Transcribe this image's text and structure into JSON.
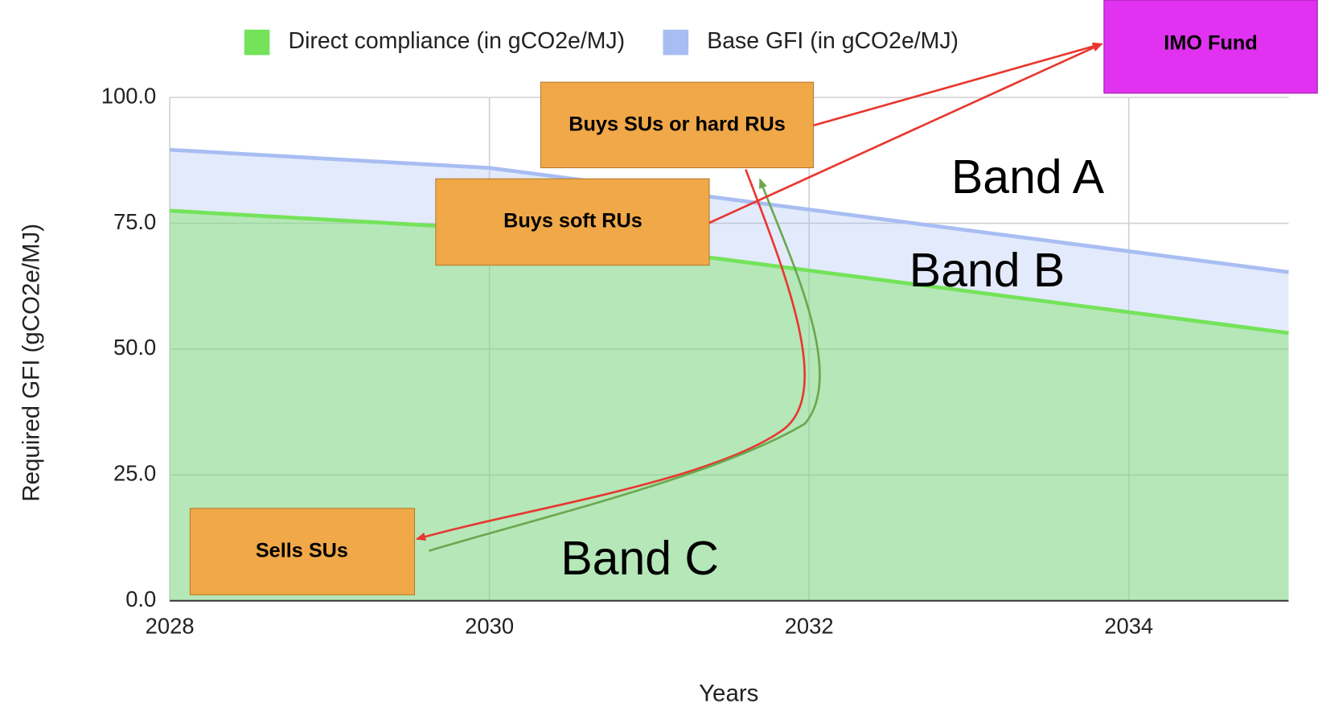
{
  "chart_data": {
    "type": "area",
    "x": [
      2028,
      2030,
      2035
    ],
    "series": [
      {
        "name": "Direct compliance (in gCO2e/MJ)",
        "color": "#74e35a",
        "values": [
          77.5,
          73.9,
          53.2
        ]
      },
      {
        "name": "Base GFI (in gCO2e/MJ)",
        "color": "#a8bdf2",
        "values": [
          89.6,
          86.0,
          65.3
        ]
      }
    ],
    "xlim": [
      2028,
      2035
    ],
    "xticks": [
      2028,
      2030,
      2032,
      2034
    ],
    "ylim": [
      0,
      100
    ],
    "yticks": [
      {
        "value": 0,
        "label": "0.0"
      },
      {
        "value": 25,
        "label": "25.0"
      },
      {
        "value": 50,
        "label": "50.0"
      },
      {
        "value": 75,
        "label": "75.0"
      },
      {
        "value": 100,
        "label": "100.0"
      }
    ],
    "xlabel": "Years",
    "ylabel": "Required GFI (gCO2e/MJ)",
    "grid": true,
    "legend": "top",
    "annotations": [
      "Buys SUs or hard RUs",
      "Buys soft RUs",
      "Sells SUs",
      "IMO Fund",
      "Band A",
      "Band B",
      "Band C"
    ]
  }
}
